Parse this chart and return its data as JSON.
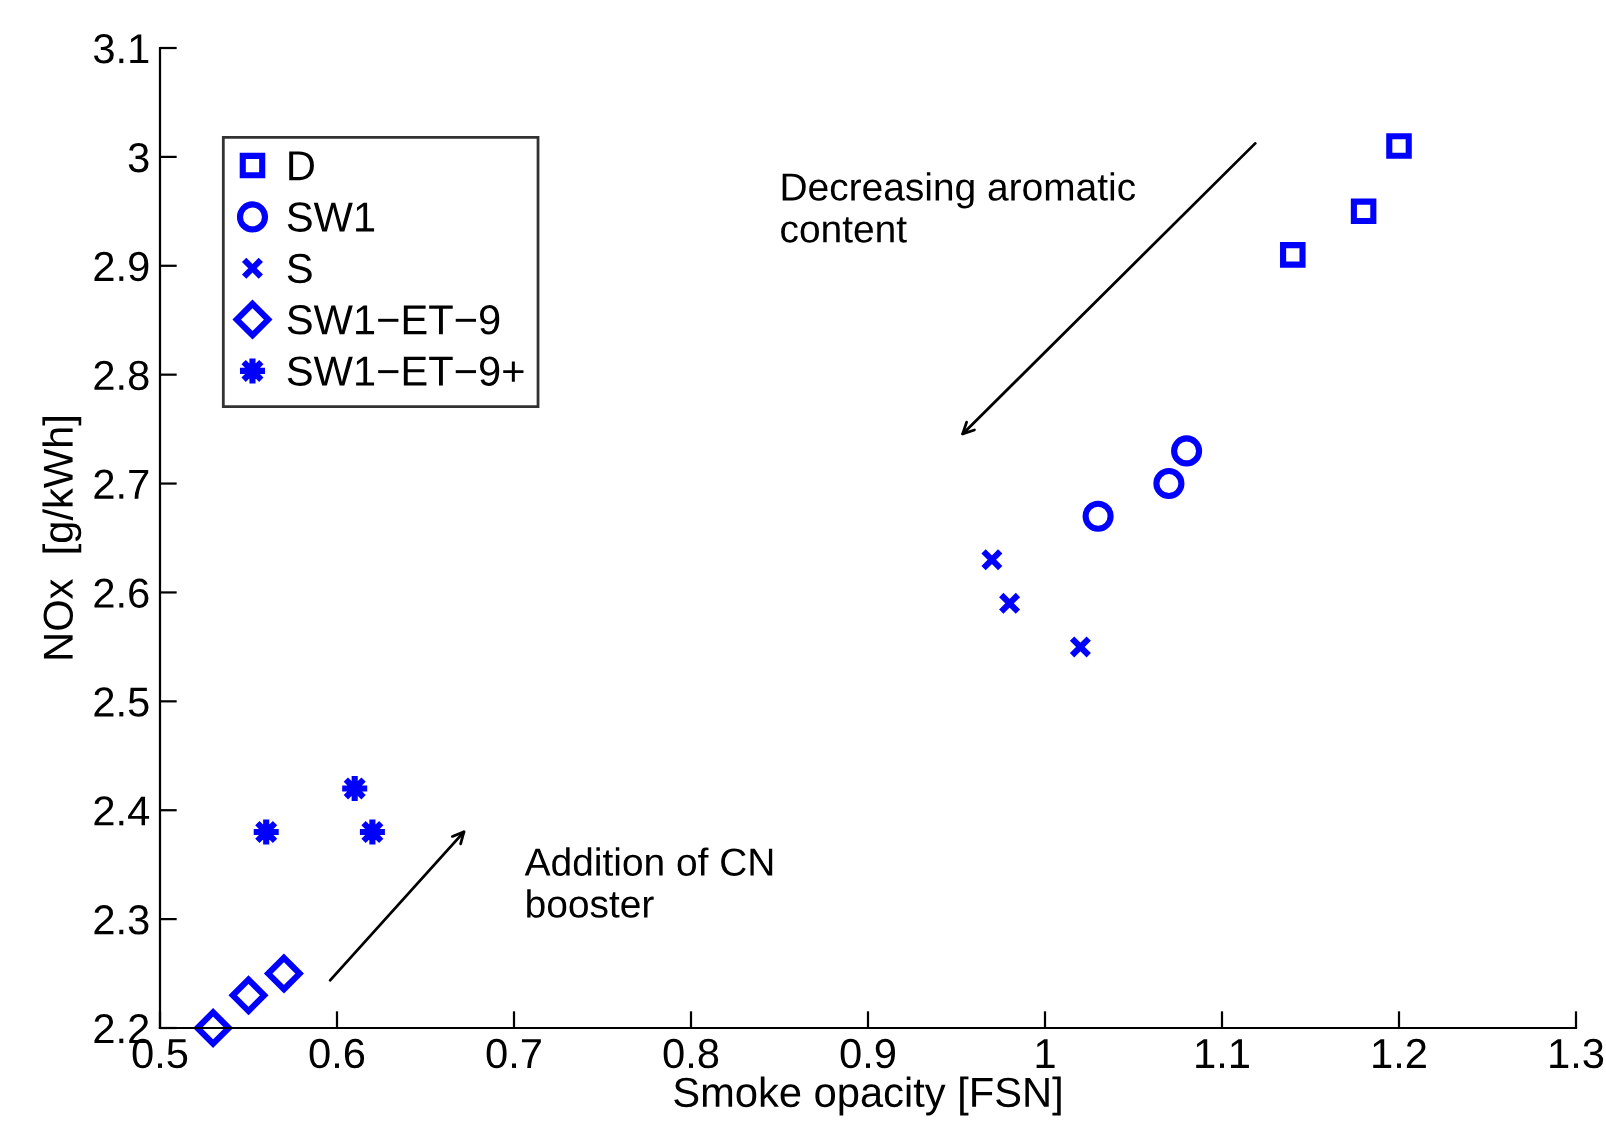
{
  "chart_data": {
    "type": "scatter",
    "xlabel": "Smoke opacity [FSN]",
    "ylabel": "NOx  [g/kWh]",
    "xlim": [
      0.5,
      1.3
    ],
    "xticks": [
      0.5,
      0.6,
      0.7,
      0.8,
      0.9,
      1,
      1.1,
      1.2,
      1.3
    ],
    "ylim": [
      2.2,
      3.1
    ],
    "yticks": [
      2.2,
      2.3,
      2.4,
      2.5,
      2.6,
      2.7,
      2.8,
      2.9,
      3,
      3.1
    ],
    "grid": false,
    "legend": "top left",
    "annotations": [
      "Decreasing aromatic\ncontent",
      "Addition of CN\nbooster"
    ],
    "series": [
      {
        "name": "D",
        "color": "#0000ff",
        "marker": "square",
        "x": [
          1.14,
          1.18,
          1.2
        ],
        "values": [
          2.91,
          2.95,
          3.01
        ]
      },
      {
        "name": "SW1",
        "color": "#0000ff",
        "marker": "circle",
        "x": [
          1.03,
          1.07,
          1.08
        ],
        "values": [
          2.67,
          2.7,
          2.73
        ]
      },
      {
        "name": "S",
        "color": "#0000ff",
        "marker": "cross",
        "x": [
          0.97,
          0.98,
          1.02
        ],
        "values": [
          2.63,
          2.59,
          2.55
        ]
      },
      {
        "name": "SW1−ET−9",
        "color": "#0000ff",
        "marker": "diamond",
        "x": [
          0.53,
          0.55,
          0.57
        ],
        "values": [
          2.2,
          2.23,
          2.25
        ]
      },
      {
        "name": "SW1−ET−9+",
        "color": "#0000ff",
        "marker": "star",
        "x": [
          0.56,
          0.61,
          0.62
        ],
        "values": [
          2.38,
          2.42,
          2.38
        ]
      }
    ]
  }
}
